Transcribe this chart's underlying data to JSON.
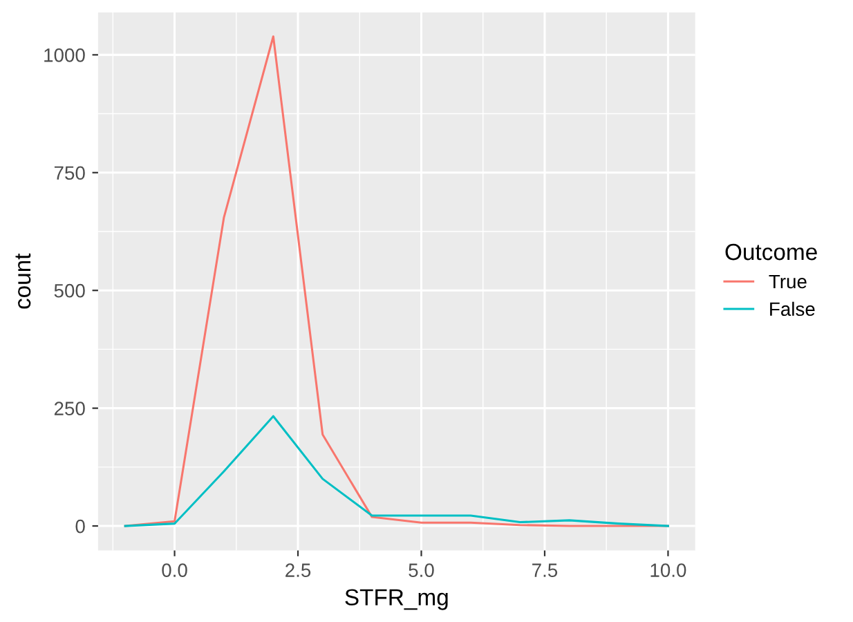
{
  "chart_data": {
    "type": "line",
    "xlabel": "STFR_mg",
    "ylabel": "count",
    "legend_title": "Outcome",
    "legend": "right",
    "grid": true,
    "x": [
      -1,
      0,
      1,
      2,
      3,
      4,
      5,
      6,
      7,
      8,
      9,
      10
    ],
    "series": [
      {
        "name": "True",
        "color": "#f8766d",
        "values": [
          0,
          10,
          655,
          1039,
          194,
          19,
          7,
          7,
          2,
          0,
          0,
          0
        ]
      },
      {
        "name": "False",
        "color": "#00bfc4",
        "values": [
          0,
          5,
          116,
          233,
          100,
          22,
          22,
          22,
          8,
          12,
          5,
          0
        ]
      }
    ],
    "xlim": [
      -1.55,
      10.55
    ],
    "ylim": [
      -52,
      1090
    ],
    "xticks": [
      {
        "value": 0,
        "label": "0.0"
      },
      {
        "value": 2.5,
        "label": "2.5"
      },
      {
        "value": 5,
        "label": "5.0"
      },
      {
        "value": 7.5,
        "label": "7.5"
      },
      {
        "value": 10,
        "label": "10.0"
      }
    ],
    "yticks": [
      0,
      250,
      500,
      750,
      1000
    ]
  }
}
